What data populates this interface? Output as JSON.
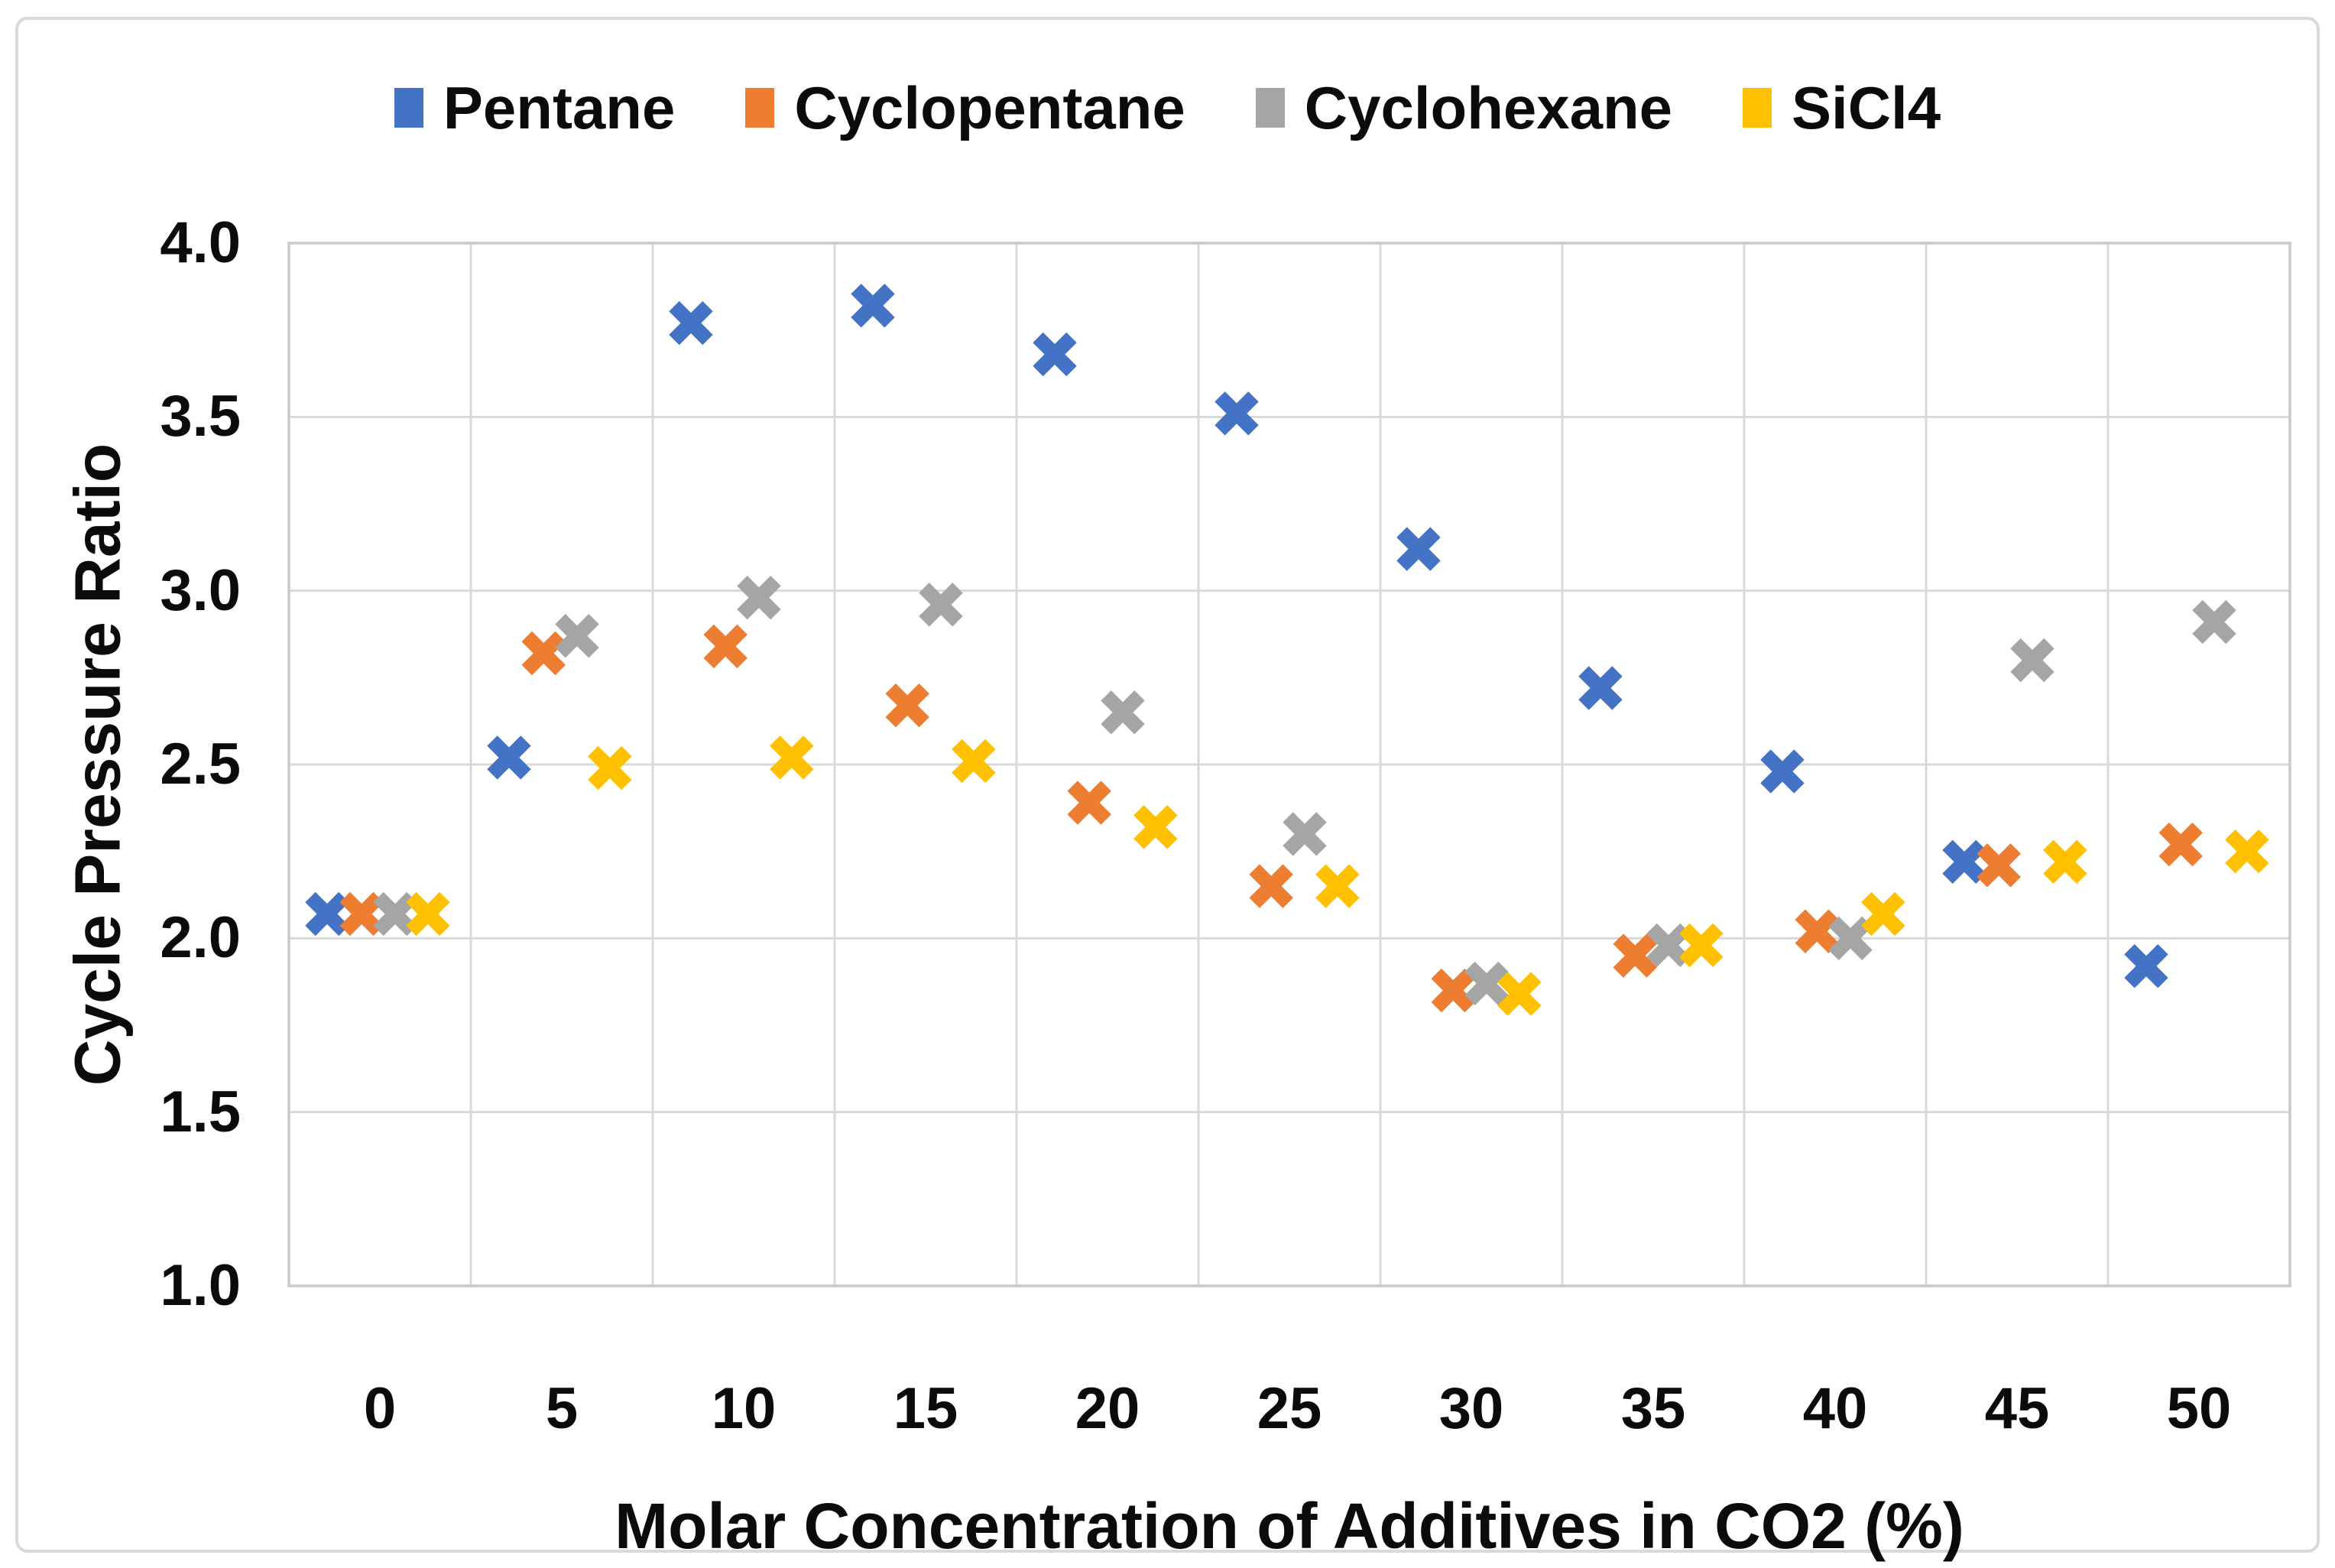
{
  "chart_data": {
    "type": "scatter",
    "title": "",
    "xlabel": "Molar Concentration of Additives in CO2 (%)",
    "ylabel": "Cycle Pressure Ratio",
    "legend_position": "top",
    "grid": true,
    "marker_shape": "x-cross",
    "xlim": [
      -2.5,
      52.5
    ],
    "ylim": [
      1.0,
      4.0
    ],
    "x_ticks": [
      0,
      5,
      10,
      15,
      20,
      25,
      30,
      35,
      40,
      45,
      50
    ],
    "y_tick_labels": [
      "4.0",
      "3.5",
      "3.0",
      "2.5",
      "2.0",
      "1.5",
      "1.0"
    ],
    "y_gridline_values": [
      1.5,
      2.0,
      2.5,
      3.0,
      3.5
    ],
    "x_gridline_values": [
      2.5,
      7.5,
      12.5,
      17.5,
      22.5,
      27.5,
      32.5,
      37.5,
      42.5,
      47.5
    ],
    "x": [
      0,
      5,
      10,
      15,
      20,
      25,
      30,
      35,
      40,
      45,
      50
    ],
    "series": [
      {
        "name": "Pentane",
        "color": "#4472C4",
        "x_offset": -1.45,
        "values": [
          2.07,
          2.52,
          3.77,
          3.82,
          3.68,
          3.51,
          3.12,
          2.72,
          2.48,
          2.22,
          1.92
        ]
      },
      {
        "name": "Cyclopentane",
        "color": "#ED7D31",
        "x_offset": -0.5,
        "values": [
          2.07,
          2.82,
          2.84,
          2.67,
          2.39,
          2.15,
          1.85,
          1.95,
          2.02,
          2.21,
          2.27
        ]
      },
      {
        "name": "Cyclohexane",
        "color": "#A5A5A5",
        "x_offset": 0.42,
        "values": [
          2.07,
          2.87,
          2.98,
          2.96,
          2.65,
          2.3,
          1.87,
          1.98,
          2.0,
          2.8,
          2.91
        ]
      },
      {
        "name": "SiCl4",
        "color": "#FFC000",
        "x_offset": 1.32,
        "values": [
          2.07,
          2.49,
          2.52,
          2.51,
          2.32,
          2.15,
          1.84,
          1.98,
          2.07,
          2.22,
          2.25
        ]
      }
    ]
  },
  "colors": {
    "gridline": "#D9D9D9",
    "plot_border": "#C9C9C9",
    "chart_border": "#D9D9D9",
    "text": "#0B0B0B",
    "background": "#FFFFFF"
  }
}
